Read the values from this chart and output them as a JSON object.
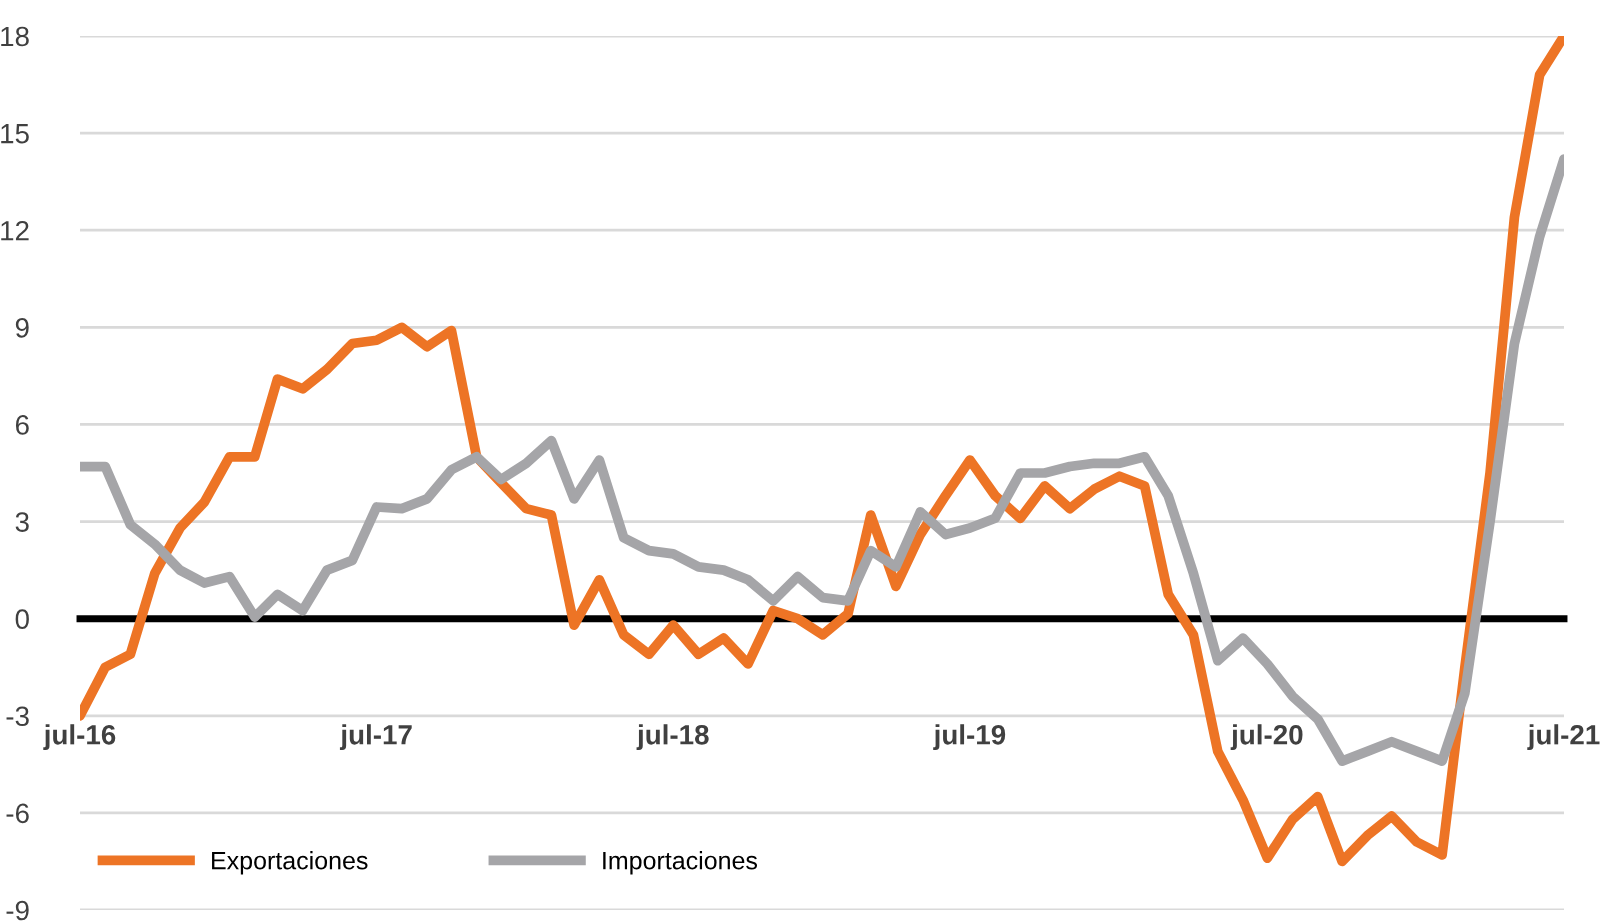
{
  "chart_data": {
    "type": "line",
    "x": [
      "2016-07",
      "2016-08",
      "2016-09",
      "2016-10",
      "2016-11",
      "2016-12",
      "2017-01",
      "2017-02",
      "2017-03",
      "2017-04",
      "2017-05",
      "2017-06",
      "2017-07",
      "2017-08",
      "2017-09",
      "2017-10",
      "2017-11",
      "2017-12",
      "2018-01",
      "2018-02",
      "2018-03",
      "2018-04",
      "2018-05",
      "2018-06",
      "2018-07",
      "2018-08",
      "2018-09",
      "2018-10",
      "2018-11",
      "2018-12",
      "2019-01",
      "2019-02",
      "2019-03",
      "2019-04",
      "2019-05",
      "2019-06",
      "2019-07",
      "2019-08",
      "2019-09",
      "2019-10",
      "2019-11",
      "2019-12",
      "2020-01",
      "2020-02",
      "2020-03",
      "2020-04",
      "2020-05",
      "2020-06",
      "2020-07",
      "2020-08",
      "2020-09",
      "2020-10",
      "2020-11",
      "2020-12",
      "2021-01",
      "2021-02",
      "2021-03",
      "2021-04",
      "2021-05",
      "2021-06",
      "2021-07"
    ],
    "series": [
      {
        "name": "Exportaciones",
        "color": "#ed7425",
        "values": [
          -3.0,
          -1.5,
          -1.1,
          1.4,
          2.8,
          3.6,
          5.0,
          5.0,
          7.4,
          7.1,
          7.7,
          8.5,
          8.6,
          9.0,
          8.4,
          8.9,
          5.0,
          4.2,
          3.4,
          3.2,
          -0.2,
          1.2,
          -0.5,
          -1.1,
          -0.2,
          -1.1,
          -0.6,
          -1.4,
          0.25,
          0.0,
          -0.5,
          0.15,
          3.2,
          1.0,
          2.6,
          3.8,
          4.9,
          3.8,
          3.1,
          4.1,
          3.4,
          4.0,
          4.4,
          4.1,
          0.75,
          -0.5,
          -4.1,
          -5.6,
          -7.4,
          -6.2,
          -5.5,
          -7.5,
          -6.7,
          -6.1,
          -6.9,
          -7.3,
          -1.5,
          4.5,
          12.4,
          16.8,
          18.0
        ]
      },
      {
        "name": "Importaciones",
        "color": "#a5a5a8",
        "values": [
          4.7,
          4.7,
          2.9,
          2.3,
          1.5,
          1.1,
          1.3,
          0.05,
          0.75,
          0.25,
          1.5,
          1.8,
          3.45,
          3.4,
          3.7,
          4.6,
          5.0,
          4.3,
          4.8,
          5.5,
          3.7,
          4.9,
          2.5,
          2.1,
          2.0,
          1.6,
          1.5,
          1.2,
          0.55,
          1.3,
          0.65,
          0.55,
          2.1,
          1.6,
          3.3,
          2.6,
          2.8,
          3.1,
          4.5,
          4.5,
          4.7,
          4.8,
          4.8,
          5.0,
          3.8,
          1.4,
          -1.3,
          -0.6,
          -1.4,
          -2.4,
          -3.1,
          -4.4,
          -4.1,
          -3.8,
          -4.1,
          -4.4,
          -2.3,
          3.0,
          8.5,
          11.8,
          14.2
        ]
      }
    ],
    "xlim": [
      "2016-07",
      "2021-07"
    ],
    "xticks": [
      {
        "value": "2016-07",
        "label": "jul-16"
      },
      {
        "value": "2017-07",
        "label": "jul-17"
      },
      {
        "value": "2018-07",
        "label": "jul-18"
      },
      {
        "value": "2019-07",
        "label": "jul-19"
      },
      {
        "value": "2020-07",
        "label": "jul-20"
      },
      {
        "value": "2021-07",
        "label": "jul-21"
      }
    ],
    "ylim": [
      -9,
      18
    ],
    "yticks": [
      -9,
      -6,
      -3,
      0,
      3,
      6,
      9,
      12,
      15,
      18
    ],
    "grid": "y",
    "legend": "bottom left",
    "line_style": "solid",
    "marker": "none"
  }
}
